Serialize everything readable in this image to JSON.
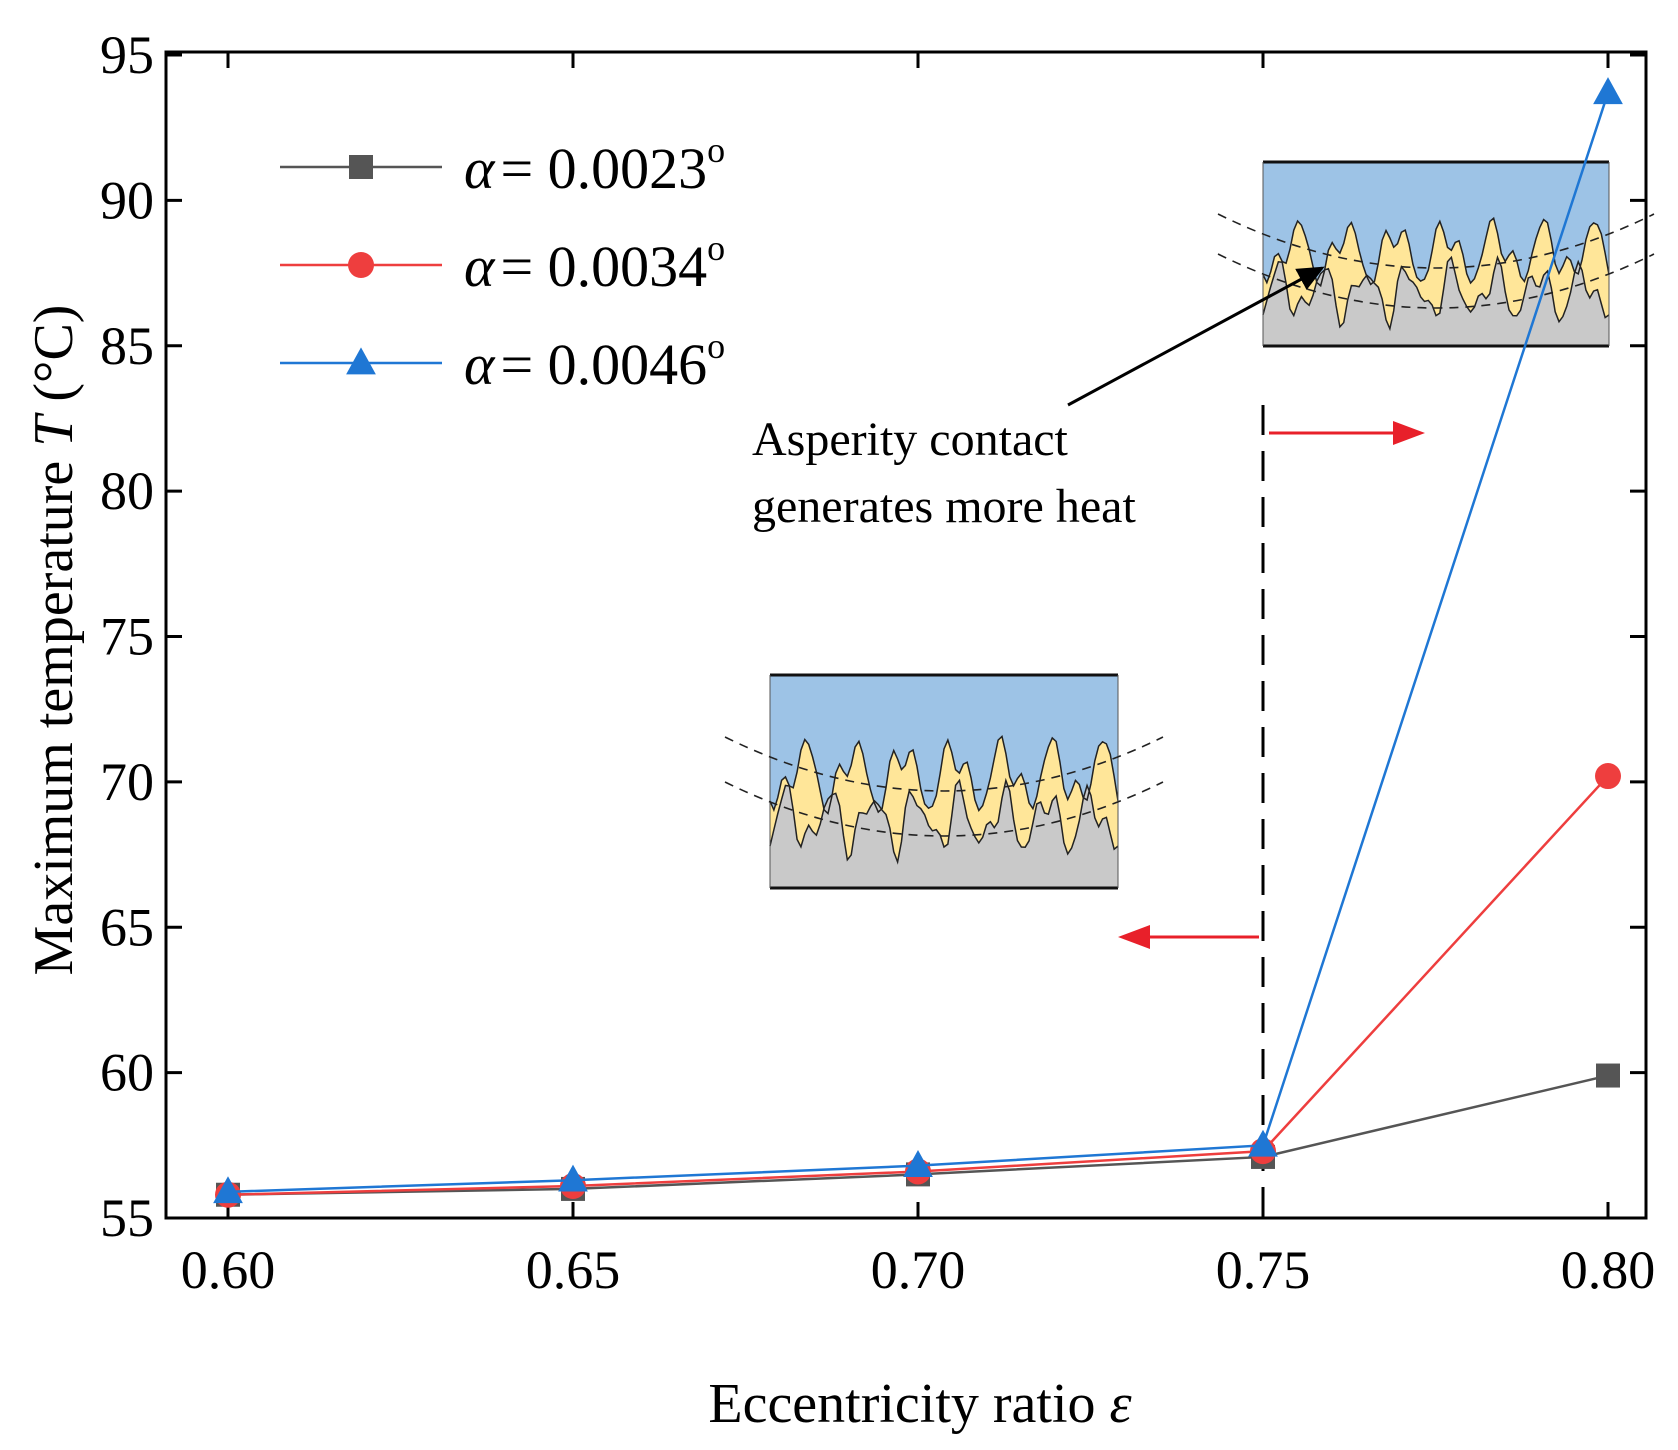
{
  "chart_data": {
    "type": "line",
    "title": "",
    "xlabel": "Eccentricity ratio ε",
    "ylabel": "Maximum temperature T (°C)",
    "xlabel_prefix": "Eccentricity ratio ",
    "xlabel_symbol": "ε",
    "ylabel_prefix": "Maximum temperature ",
    "ylabel_symbol": "T",
    "ylabel_suffix": " (°C)",
    "xlim": [
      0.6,
      0.8
    ],
    "ylim": [
      55,
      95
    ],
    "x_ticks": [
      "0.60",
      "0.65",
      "0.70",
      "0.75",
      "0.80"
    ],
    "y_ticks": [
      "55",
      "60",
      "65",
      "70",
      "75",
      "80",
      "85",
      "90",
      "95"
    ],
    "x": [
      0.6,
      0.65,
      0.7,
      0.75,
      0.8
    ],
    "series": [
      {
        "name": "α = 0.0023°",
        "symbol": "α",
        "value_text": "= 0.0023",
        "degree": "o",
        "marker": "square",
        "color": "#555555",
        "values": [
          55.8,
          56.0,
          56.5,
          57.1,
          59.9
        ]
      },
      {
        "name": "α = 0.0034°",
        "symbol": "α",
        "value_text": "= 0.0034",
        "degree": "o",
        "marker": "circle",
        "color": "#ee3e3e",
        "values": [
          55.8,
          56.1,
          56.6,
          57.3,
          70.2
        ]
      },
      {
        "name": "α = 0.0046°",
        "symbol": "α",
        "value_text": "= 0.0046",
        "degree": "o",
        "marker": "triangle",
        "color": "#1f77d4",
        "values": [
          55.9,
          56.3,
          56.8,
          57.5,
          93.7
        ]
      }
    ],
    "threshold_x": 0.75,
    "annotation": {
      "line1": "Asperity contact",
      "line2": "generates more heat"
    },
    "legend_position": "top-left",
    "grid": false
  },
  "colors": {
    "upper_surface": "#9dc3e6",
    "lubricant": "#ffe699",
    "lower_surface": "#c9c9c9",
    "arrow_red": "#e8202a"
  }
}
